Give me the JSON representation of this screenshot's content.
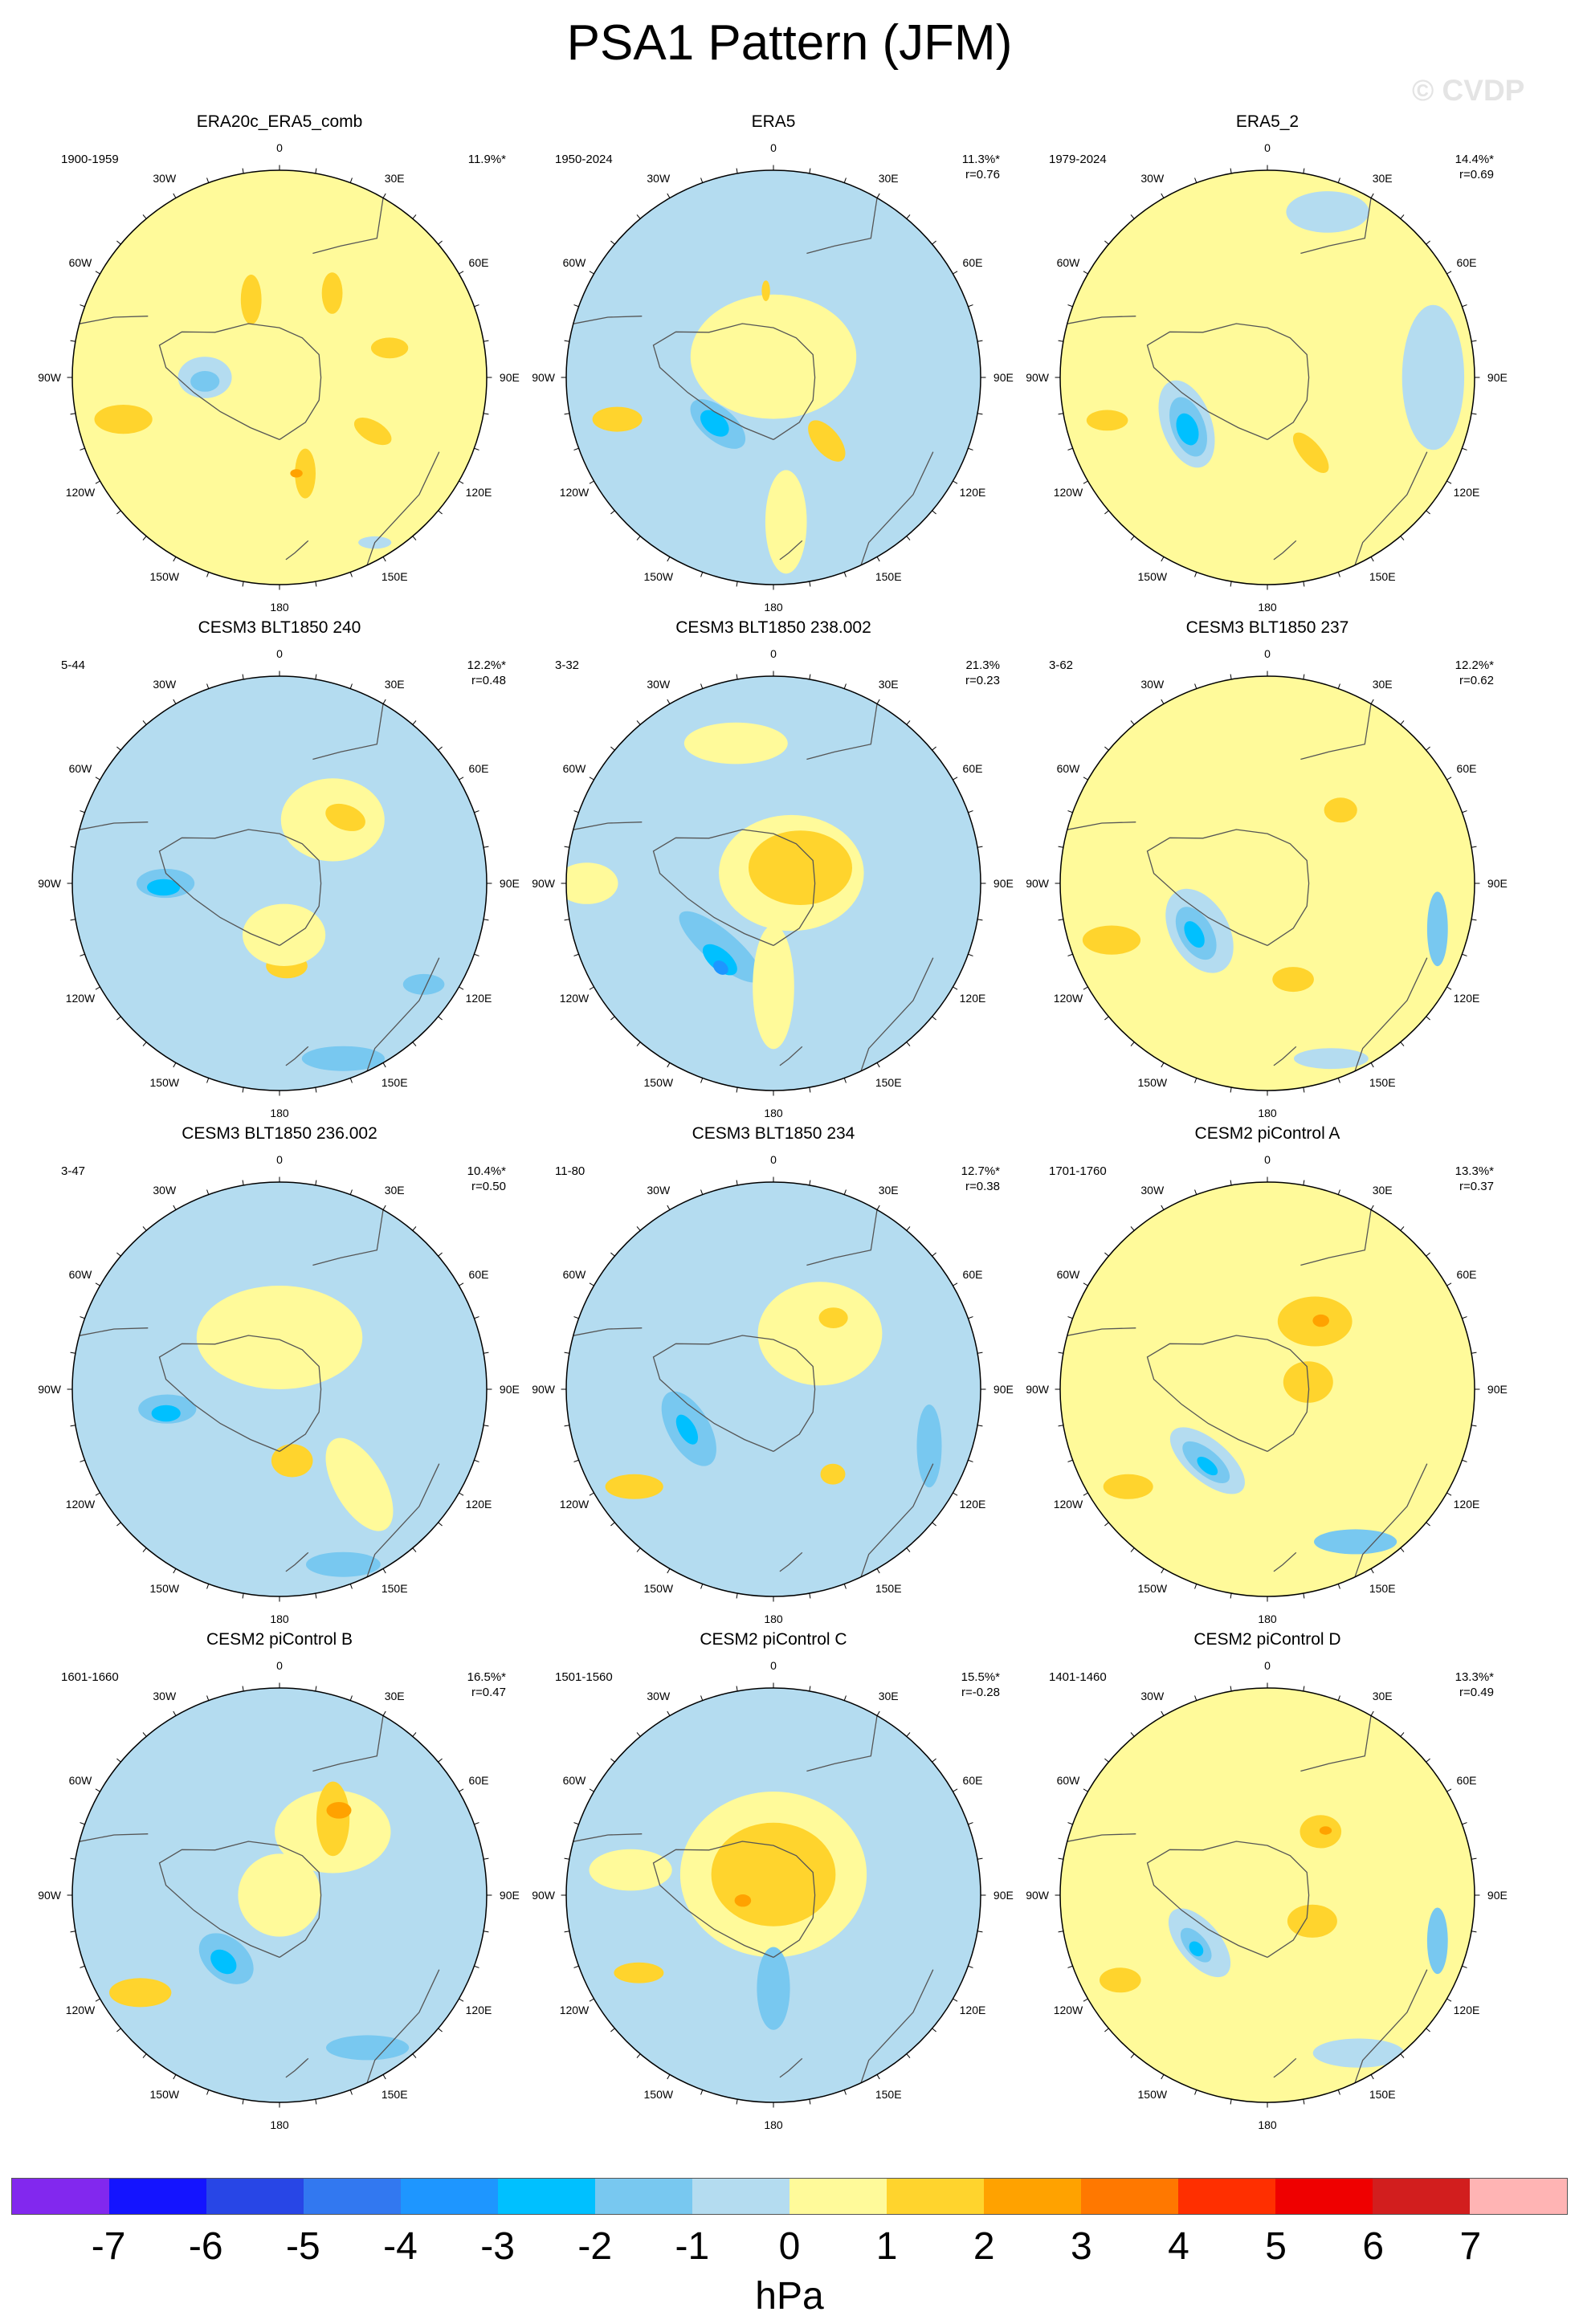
{
  "title": "PSA1 Pattern (JFM)",
  "watermark": "© CVDP",
  "lon_labels": [
    "0",
    "30E",
    "60E",
    "90E",
    "120E",
    "150E",
    "180",
    "150W",
    "120W",
    "90W",
    "60W",
    "30W"
  ],
  "colors": {
    "p7": "#ffb4b4",
    "p6": "#d21e1e",
    "p5": "#ef0000",
    "p4": "#ff2f00",
    "p3": "#ff7800",
    "p2": "#ffa200",
    "p1": "#ffd42d",
    "p0": "#fffa9a",
    "n0": "#b4dcf0",
    "n1": "#78c8f0",
    "n2": "#00c0ff",
    "n3": "#1e96ff",
    "n4": "#3278f0",
    "n5": "#2846e6",
    "n6": "#1414ff",
    "n7": "#8228ee"
  },
  "colorbar": {
    "labels": [
      "-7",
      "-6",
      "-5",
      "-4",
      "-3",
      "-2",
      "-1",
      "0",
      "1",
      "2",
      "3",
      "4",
      "5",
      "6",
      "7"
    ],
    "colors": [
      "#8228ee",
      "#1414ff",
      "#2846e6",
      "#3278f0",
      "#1e96ff",
      "#00c0ff",
      "#78c8f0",
      "#b4dcf0",
      "#fffa9a",
      "#ffd42d",
      "#ffa200",
      "#ff7800",
      "#ff2f00",
      "#ef0000",
      "#d21e1e",
      "#ffb4b4"
    ],
    "unit": "hPa"
  },
  "panels": [
    {
      "title": "ERA20c_ERA5_comb",
      "period": "1900-1959",
      "pct": "11.9%*",
      "r": "",
      "base": "p0",
      "features": [
        {
          "lon": 32,
          "r": 0.48,
          "a": 0.1,
          "b": 0.05,
          "rot": 90,
          "level": "p1"
        },
        {
          "lon": 75,
          "r": 0.55,
          "a": 0.09,
          "b": 0.05,
          "rot": 0,
          "level": "p1"
        },
        {
          "lon": 120,
          "r": 0.52,
          "a": 0.1,
          "b": 0.05,
          "rot": 30,
          "level": "p1"
        },
        {
          "lon": 165,
          "r": 0.48,
          "a": 0.12,
          "b": 0.05,
          "rot": 90,
          "level": "p1"
        },
        {
          "lon": 170,
          "r": 0.47,
          "a": 0.03,
          "b": 0.02,
          "rot": 0,
          "level": "p2"
        },
        {
          "lon": -20,
          "r": 0.4,
          "a": 0.12,
          "b": 0.05,
          "rot": 90,
          "level": "p1"
        },
        {
          "lon": -105,
          "r": 0.78,
          "a": 0.14,
          "b": 0.07,
          "rot": 0,
          "level": "p1"
        },
        {
          "lon": -90,
          "r": 0.36,
          "a": 0.13,
          "b": 0.1,
          "rot": 0,
          "level": "n0"
        },
        {
          "lon": -93,
          "r": 0.36,
          "a": 0.07,
          "b": 0.05,
          "rot": 0,
          "level": "n1"
        },
        {
          "lon": 150,
          "r": 0.92,
          "a": 0.08,
          "b": 0.03,
          "rot": 0,
          "level": "n0"
        }
      ]
    },
    {
      "title": "ERA5",
      "period": "1950-2024",
      "pct": "11.3%*",
      "r": "r=0.76",
      "base": "n0",
      "features": [
        {
          "lon": 0,
          "r": 0.1,
          "a": 0.4,
          "b": 0.3,
          "rot": 0,
          "level": "p0"
        },
        {
          "lon": -5,
          "r": 0.42,
          "a": 0.05,
          "b": 0.02,
          "rot": 90,
          "level": "p1"
        },
        {
          "lon": 140,
          "r": 0.4,
          "a": 0.12,
          "b": 0.06,
          "rot": 50,
          "level": "p1"
        },
        {
          "lon": -105,
          "r": 0.78,
          "a": 0.12,
          "b": 0.06,
          "rot": 0,
          "level": "p1"
        },
        {
          "lon": -130,
          "r": 0.35,
          "a": 0.16,
          "b": 0.08,
          "rot": 40,
          "level": "n1"
        },
        {
          "lon": -128,
          "r": 0.36,
          "a": 0.08,
          "b": 0.05,
          "rot": 40,
          "level": "n2"
        },
        {
          "lon": 175,
          "r": 0.7,
          "a": 0.25,
          "b": 0.1,
          "rot": 90,
          "level": "p0"
        }
      ]
    },
    {
      "title": "ERA5_2",
      "period": "1979-2024",
      "pct": "14.4%*",
      "r": "r=0.69",
      "base": "p0",
      "features": [
        {
          "lon": -120,
          "r": 0.45,
          "a": 0.22,
          "b": 0.12,
          "rot": 70,
          "level": "n0"
        },
        {
          "lon": -122,
          "r": 0.45,
          "a": 0.15,
          "b": 0.08,
          "rot": 70,
          "level": "n1"
        },
        {
          "lon": -123,
          "r": 0.46,
          "a": 0.08,
          "b": 0.05,
          "rot": 70,
          "level": "n2"
        },
        {
          "lon": 150,
          "r": 0.42,
          "a": 0.12,
          "b": 0.05,
          "rot": 50,
          "level": "p1"
        },
        {
          "lon": -105,
          "r": 0.8,
          "a": 0.1,
          "b": 0.05,
          "rot": 0,
          "level": "p1"
        },
        {
          "lon": 90,
          "r": 0.8,
          "a": 0.15,
          "b": 0.35,
          "rot": 0,
          "level": "n0"
        },
        {
          "lon": 20,
          "r": 0.85,
          "a": 0.2,
          "b": 0.1,
          "rot": 0,
          "level": "n0"
        }
      ]
    },
    {
      "title": "CESM3 BLT1850 240",
      "period": "5-44",
      "pct": "12.2%*",
      "r": "r=0.48",
      "base": "n0",
      "features": [
        {
          "lon": 40,
          "r": 0.4,
          "a": 0.25,
          "b": 0.2,
          "rot": 0,
          "level": "p0"
        },
        {
          "lon": 45,
          "r": 0.45,
          "a": 0.1,
          "b": 0.06,
          "rot": 20,
          "level": "p1"
        },
        {
          "lon": 175,
          "r": 0.4,
          "a": 0.1,
          "b": 0.06,
          "rot": 0,
          "level": "p1"
        },
        {
          "lon": 175,
          "r": 0.25,
          "a": 0.2,
          "b": 0.15,
          "rot": 0,
          "level": "p0"
        },
        {
          "lon": -90,
          "r": 0.55,
          "a": 0.14,
          "b": 0.07,
          "rot": 0,
          "level": "n1"
        },
        {
          "lon": -92,
          "r": 0.56,
          "a": 0.08,
          "b": 0.04,
          "rot": 0,
          "level": "n2"
        },
        {
          "lon": 160,
          "r": 0.9,
          "a": 0.2,
          "b": 0.06,
          "rot": 0,
          "level": "n1"
        },
        {
          "lon": 125,
          "r": 0.85,
          "a": 0.1,
          "b": 0.05,
          "rot": 0,
          "level": "n1"
        }
      ]
    },
    {
      "title": "CESM3 BLT1850 238.002",
      "period": "3-32",
      "pct": "21.3%",
      "r": "r=0.23",
      "base": "n0",
      "features": [
        {
          "lon": 60,
          "r": 0.1,
          "a": 0.35,
          "b": 0.28,
          "rot": 0,
          "level": "p0"
        },
        {
          "lon": 60,
          "r": 0.15,
          "a": 0.25,
          "b": 0.18,
          "rot": 0,
          "level": "p1"
        },
        {
          "lon": -15,
          "r": 0.7,
          "a": 0.25,
          "b": 0.1,
          "rot": 0,
          "level": "p0"
        },
        {
          "lon": -90,
          "r": 0.9,
          "a": 0.15,
          "b": 0.1,
          "rot": 0,
          "level": "p0"
        },
        {
          "lon": -140,
          "r": 0.4,
          "a": 0.25,
          "b": 0.08,
          "rot": 40,
          "level": "n1"
        },
        {
          "lon": -145,
          "r": 0.45,
          "a": 0.1,
          "b": 0.05,
          "rot": 40,
          "level": "n2"
        },
        {
          "lon": -148,
          "r": 0.48,
          "a": 0.04,
          "b": 0.03,
          "rot": 40,
          "level": "n3"
        },
        {
          "lon": 180,
          "r": 0.5,
          "a": 0.3,
          "b": 0.1,
          "rot": 90,
          "level": "p0"
        }
      ]
    },
    {
      "title": "CESM3 BLT1850 237",
      "period": "3-62",
      "pct": "12.2%*",
      "r": "r=0.62",
      "base": "p0",
      "features": [
        {
          "lon": -125,
          "r": 0.4,
          "a": 0.22,
          "b": 0.14,
          "rot": 60,
          "level": "n0"
        },
        {
          "lon": -125,
          "r": 0.42,
          "a": 0.14,
          "b": 0.08,
          "rot": 60,
          "level": "n1"
        },
        {
          "lon": -125,
          "r": 0.43,
          "a": 0.07,
          "b": 0.04,
          "rot": 60,
          "level": "n2"
        },
        {
          "lon": 45,
          "r": 0.5,
          "a": 0.08,
          "b": 0.06,
          "rot": 0,
          "level": "p1"
        },
        {
          "lon": 165,
          "r": 0.48,
          "a": 0.1,
          "b": 0.06,
          "rot": 0,
          "level": "p1"
        },
        {
          "lon": -110,
          "r": 0.8,
          "a": 0.14,
          "b": 0.07,
          "rot": 0,
          "level": "p1"
        },
        {
          "lon": 105,
          "r": 0.85,
          "a": 0.18,
          "b": 0.05,
          "rot": 90,
          "level": "n1"
        },
        {
          "lon": 160,
          "r": 0.9,
          "a": 0.18,
          "b": 0.05,
          "rot": 0,
          "level": "n0"
        }
      ]
    },
    {
      "title": "CESM3 BLT1850 236.002",
      "period": "3-47",
      "pct": "10.4%*",
      "r": "r=0.50",
      "base": "n0",
      "features": [
        {
          "lon": 0,
          "r": 0.25,
          "a": 0.4,
          "b": 0.25,
          "rot": 0,
          "level": "p0"
        },
        {
          "lon": 170,
          "r": 0.35,
          "a": 0.1,
          "b": 0.08,
          "rot": 0,
          "level": "p1"
        },
        {
          "lon": -105,
          "r": 0.6,
          "a": 0.18,
          "b": 0.1,
          "rot": 0,
          "level": "n0"
        },
        {
          "lon": -100,
          "r": 0.55,
          "a": 0.14,
          "b": 0.07,
          "rot": 0,
          "level": "n1"
        },
        {
          "lon": -102,
          "r": 0.56,
          "a": 0.07,
          "b": 0.04,
          "rot": 0,
          "level": "n2"
        },
        {
          "lon": 140,
          "r": 0.6,
          "a": 0.25,
          "b": 0.12,
          "rot": 60,
          "level": "p0"
        },
        {
          "lon": 160,
          "r": 0.9,
          "a": 0.18,
          "b": 0.06,
          "rot": 0,
          "level": "n1"
        }
      ]
    },
    {
      "title": "CESM3 BLT1850 234",
      "period": "11-80",
      "pct": "12.7%*",
      "r": "r=0.38",
      "base": "n0",
      "features": [
        {
          "lon": 40,
          "r": 0.35,
          "a": 0.3,
          "b": 0.25,
          "rot": 0,
          "level": "p0"
        },
        {
          "lon": 40,
          "r": 0.45,
          "a": 0.07,
          "b": 0.05,
          "rot": 0,
          "level": "p1"
        },
        {
          "lon": 145,
          "r": 0.5,
          "a": 0.06,
          "b": 0.05,
          "rot": 0,
          "level": "p1"
        },
        {
          "lon": -115,
          "r": 0.45,
          "a": 0.2,
          "b": 0.1,
          "rot": 60,
          "level": "n1"
        },
        {
          "lon": -115,
          "r": 0.46,
          "a": 0.08,
          "b": 0.04,
          "rot": 60,
          "level": "n2"
        },
        {
          "lon": -125,
          "r": 0.82,
          "a": 0.14,
          "b": 0.06,
          "rot": 0,
          "level": "p1"
        },
        {
          "lon": 110,
          "r": 0.8,
          "a": 0.2,
          "b": 0.06,
          "rot": 90,
          "level": "n1"
        }
      ]
    },
    {
      "title": "CESM2 piControl A",
      "period": "1701-1760",
      "pct": "13.3%*",
      "r": "r=0.37",
      "base": "p0",
      "features": [
        {
          "lon": 35,
          "r": 0.4,
          "a": 0.18,
          "b": 0.12,
          "rot": 0,
          "level": "p1"
        },
        {
          "lon": 38,
          "r": 0.42,
          "a": 0.04,
          "b": 0.03,
          "rot": 0,
          "level": "p2"
        },
        {
          "lon": 80,
          "r": 0.2,
          "a": 0.12,
          "b": 0.1,
          "rot": 0,
          "level": "p1"
        },
        {
          "lon": -140,
          "r": 0.45,
          "a": 0.22,
          "b": 0.1,
          "rot": 40,
          "level": "n0"
        },
        {
          "lon": -140,
          "r": 0.46,
          "a": 0.14,
          "b": 0.06,
          "rot": 40,
          "level": "n1"
        },
        {
          "lon": -142,
          "r": 0.47,
          "a": 0.06,
          "b": 0.03,
          "rot": 40,
          "level": "n2"
        },
        {
          "lon": -125,
          "r": 0.82,
          "a": 0.12,
          "b": 0.06,
          "rot": 0,
          "level": "p1"
        },
        {
          "lon": 150,
          "r": 0.85,
          "a": 0.2,
          "b": 0.06,
          "rot": 0,
          "level": "n1"
        }
      ]
    },
    {
      "title": "CESM2 piControl B",
      "period": "1601-1660",
      "pct": "16.5%*",
      "r": "r=0.47",
      "base": "n0",
      "features": [
        {
          "lon": 40,
          "r": 0.4,
          "a": 0.28,
          "b": 0.2,
          "rot": 0,
          "level": "p0"
        },
        {
          "lon": 35,
          "r": 0.45,
          "a": 0.18,
          "b": 0.08,
          "rot": 90,
          "level": "p1"
        },
        {
          "lon": 35,
          "r": 0.5,
          "a": 0.06,
          "b": 0.04,
          "rot": 0,
          "level": "p2"
        },
        {
          "lon": -140,
          "r": 0.4,
          "a": 0.15,
          "b": 0.1,
          "rot": 40,
          "level": "n1"
        },
        {
          "lon": -140,
          "r": 0.42,
          "a": 0.07,
          "b": 0.05,
          "rot": 40,
          "level": "n2"
        },
        {
          "lon": -125,
          "r": 0.82,
          "a": 0.15,
          "b": 0.07,
          "rot": 0,
          "level": "p1"
        },
        {
          "lon": 150,
          "r": 0.85,
          "a": 0.2,
          "b": 0.06,
          "rot": 0,
          "level": "n1"
        },
        {
          "lon": 0,
          "r": 0.0,
          "a": 0.2,
          "b": 0.2,
          "rot": 0,
          "level": "p0"
        }
      ]
    },
    {
      "title": "CESM2 piControl C",
      "period": "1501-1560",
      "pct": "15.5%*",
      "r": "r=-0.28",
      "base": "n0",
      "features": [
        {
          "lon": 0,
          "r": 0.1,
          "a": 0.45,
          "b": 0.4,
          "rot": 0,
          "level": "p0"
        },
        {
          "lon": 0,
          "r": 0.1,
          "a": 0.3,
          "b": 0.25,
          "rot": 0,
          "level": "p1"
        },
        {
          "lon": -100,
          "r": 0.15,
          "a": 0.04,
          "b": 0.03,
          "rot": 0,
          "level": "p2"
        },
        {
          "lon": 180,
          "r": 0.45,
          "a": 0.2,
          "b": 0.08,
          "rot": 90,
          "level": "n1"
        },
        {
          "lon": -80,
          "r": 0.7,
          "a": 0.2,
          "b": 0.1,
          "rot": 0,
          "level": "p0"
        },
        {
          "lon": -120,
          "r": 0.75,
          "a": 0.12,
          "b": 0.05,
          "rot": 0,
          "level": "p1"
        },
        {
          "lon": 75,
          "r": 0.75,
          "a": 0.15,
          "b": 0.08,
          "rot": 0,
          "level": "n0"
        }
      ]
    },
    {
      "title": "CESM2 piControl D",
      "period": "1401-1460",
      "pct": "13.3%*",
      "r": "r=0.49",
      "base": "p0",
      "features": [
        {
          "lon": 40,
          "r": 0.4,
          "a": 0.1,
          "b": 0.08,
          "rot": 0,
          "level": "p1"
        },
        {
          "lon": 42,
          "r": 0.42,
          "a": 0.03,
          "b": 0.02,
          "rot": 0,
          "level": "p2"
        },
        {
          "lon": 120,
          "r": 0.25,
          "a": 0.12,
          "b": 0.08,
          "rot": 0,
          "level": "p1"
        },
        {
          "lon": -125,
          "r": 0.4,
          "a": 0.2,
          "b": 0.1,
          "rot": 50,
          "level": "n0"
        },
        {
          "lon": -125,
          "r": 0.42,
          "a": 0.1,
          "b": 0.05,
          "rot": 50,
          "level": "n1"
        },
        {
          "lon": -127,
          "r": 0.43,
          "a": 0.04,
          "b": 0.03,
          "rot": 50,
          "level": "n2"
        },
        {
          "lon": -120,
          "r": 0.82,
          "a": 0.1,
          "b": 0.06,
          "rot": 0,
          "level": "p1"
        },
        {
          "lon": 150,
          "r": 0.88,
          "a": 0.22,
          "b": 0.07,
          "rot": 0,
          "level": "n0"
        },
        {
          "lon": 105,
          "r": 0.85,
          "a": 0.16,
          "b": 0.05,
          "rot": 90,
          "level": "n1"
        }
      ]
    }
  ]
}
